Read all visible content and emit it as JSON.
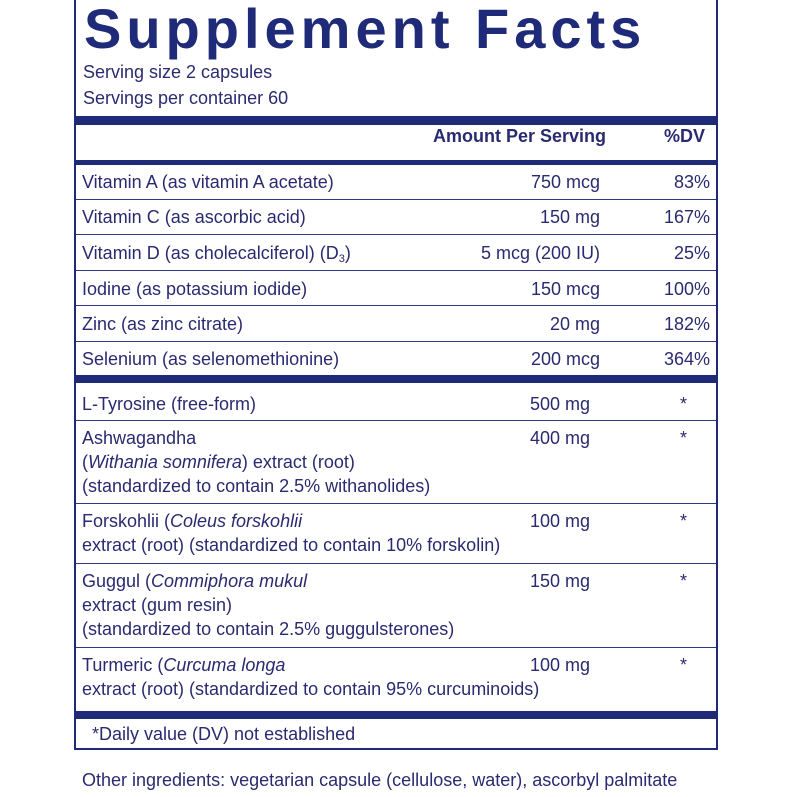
{
  "title": "Supplement Facts",
  "serving_size": "Serving size  2 capsules",
  "servings_per_container": "Servings per container  60",
  "header": {
    "amount": "Amount Per Serving",
    "dv": "%DV"
  },
  "vitamins": [
    {
      "name": "Vitamin A (as vitamin A acetate)",
      "amount": "750 mcg",
      "dv": "83%"
    },
    {
      "name": "Vitamin C (as ascorbic acid)",
      "amount": "150 mg",
      "dv": "167%"
    },
    {
      "name_prefix": "Vitamin D (as cholecalciferol) (D",
      "name_sub": "3",
      "name_suffix": ")",
      "amount": "5 mcg (200 IU)",
      "dv": "25%"
    },
    {
      "name": "Iodine (as potassium iodide)",
      "amount": "150 mcg",
      "dv": "100%"
    },
    {
      "name": "Zinc (as zinc citrate)",
      "amount": "20 mg",
      "dv": "182%"
    },
    {
      "name": "Selenium (as selenomethionine)",
      "amount": "200 mcg",
      "dv": "364%"
    }
  ],
  "other_actives": [
    {
      "line1": "L-Tyrosine (free-form)",
      "amount": "500 mg",
      "dv": "*"
    },
    {
      "line1": "Ashwagandha",
      "line2_latin": "Withania somnifera",
      "line2_rest": ") extract (root)",
      "line3": "(standardized to contain 2.5% withanolides)",
      "amount": "400 mg",
      "dv": "*"
    },
    {
      "line1_pre": "Forskohlii (",
      "line1_latin": "Coleus forskohlii",
      "line2": "extract (root) (standardized to contain 10% forskolin)",
      "amount": "100 mg",
      "dv": "*"
    },
    {
      "line1_pre": "Guggul (",
      "line1_latin": "Commiphora mukul",
      "line2": "extract (gum resin)",
      "line3": "(standardized to contain 2.5% guggulsterones)",
      "amount": "150 mg",
      "dv": "*"
    },
    {
      "line1_pre": "Turmeric (",
      "line1_latin": "Curcuma longa",
      "line2": "extract (root) (standardized to contain 95% curcuminoids)",
      "amount": "100 mg",
      "dv": "*"
    }
  ],
  "footnote": "*Daily value (DV) not established",
  "other_ingredients": "Other ingredients: vegetarian capsule (cellulose, water), ascorbyl palmitate",
  "colors": {
    "navy": "#1f2a78",
    "text": "#2a2a70"
  }
}
